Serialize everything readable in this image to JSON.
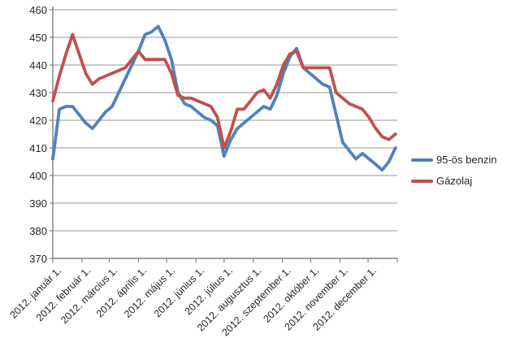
{
  "chart_data": {
    "type": "line",
    "title": "",
    "x_interval": "weekly",
    "x_tick_labels": [
      "2012. január 1.",
      "2012. február 1.",
      "2012. március 1.",
      "2012. április 1.",
      "2012. május 1.",
      "2012. június 1.",
      "2012. július 1.",
      "2012. augusztus 1.",
      "2012. szeptember 1.",
      "2012. október 1.",
      "2012. november 1.",
      "2012. december 1."
    ],
    "month_start_days": [
      0,
      31,
      60,
      91,
      121,
      152,
      182,
      213,
      244,
      274,
      305,
      335
    ],
    "days_in_year": 366,
    "ylim": [
      370,
      460
    ],
    "yticks": [
      460,
      450,
      440,
      430,
      420,
      410,
      400,
      390,
      380,
      370
    ],
    "grid": true,
    "legend_position": "right",
    "series": [
      {
        "name": "95-ös benzin",
        "color": "#4F81BD",
        "values": [
          406,
          424,
          425,
          425,
          422,
          419,
          417,
          420,
          423,
          425,
          430,
          435,
          440,
          445,
          451,
          452,
          454,
          449,
          442,
          430,
          426,
          425,
          423,
          421,
          420,
          418,
          407,
          413,
          417,
          419,
          421,
          423,
          425,
          424,
          429,
          437,
          443,
          446,
          439,
          437,
          435,
          433,
          432,
          422,
          412,
          409,
          406,
          408,
          406,
          404,
          402,
          405,
          410
        ]
      },
      {
        "name": "Gázolaj",
        "color": "#C0504D",
        "values": [
          427,
          436,
          444,
          451,
          444,
          437,
          433,
          435,
          436,
          437,
          438,
          439,
          442,
          445,
          442,
          442,
          442,
          442,
          437,
          429,
          428,
          428,
          427,
          426,
          425,
          421,
          410,
          416,
          424,
          424,
          427,
          430,
          431,
          428,
          433,
          440,
          444,
          445,
          439,
          439,
          439,
          439,
          439,
          430,
          428,
          426,
          425,
          424,
          421,
          417,
          414,
          413,
          415
        ]
      }
    ],
    "colors": {
      "gridline": "#969696",
      "axis": "#808080",
      "tick_text": "#262626",
      "background": "#FFFFFF"
    }
  }
}
